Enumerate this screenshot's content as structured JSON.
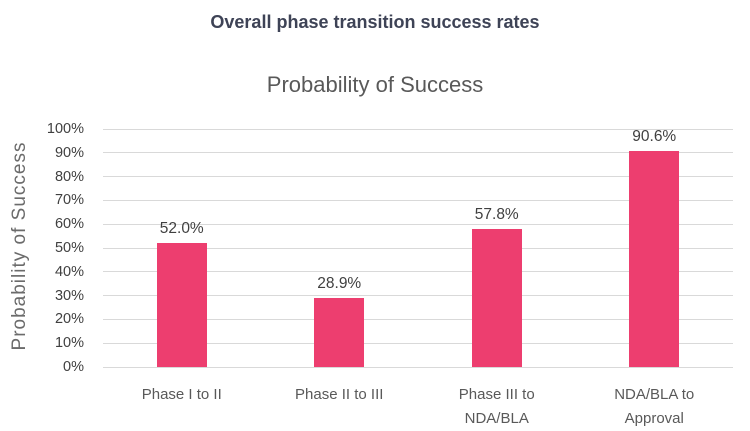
{
  "page": {
    "title": "Overall phase transition success rates"
  },
  "chart_data": {
    "type": "bar",
    "title": "Probability of Success",
    "xlabel": "",
    "ylabel": "Probability of Success",
    "categories": [
      "Phase I to II",
      "Phase II to III",
      "Phase III to NDA/BLA",
      "NDA/BLA to Approval"
    ],
    "values": [
      52.0,
      28.9,
      57.8,
      90.6
    ],
    "value_labels": [
      "52.0%",
      "28.9%",
      "57.8%",
      "90.6%"
    ],
    "y_ticks": [
      "100%",
      "90%",
      "80%",
      "70%",
      "60%",
      "50%",
      "40%",
      "30%",
      "20%",
      "10%",
      "0%"
    ],
    "ylim": [
      0,
      100
    ],
    "grid": "horizontal",
    "legend": "none"
  },
  "colors": {
    "bar": "#ED3E6F",
    "gridline": "#D9D9D9",
    "main_title": "#3E4356",
    "chart_title": "#595959",
    "axis_text": "#404040",
    "category_text": "#595959",
    "axis_title_text": "#6B6B6B",
    "background": "#FFFFFF"
  }
}
